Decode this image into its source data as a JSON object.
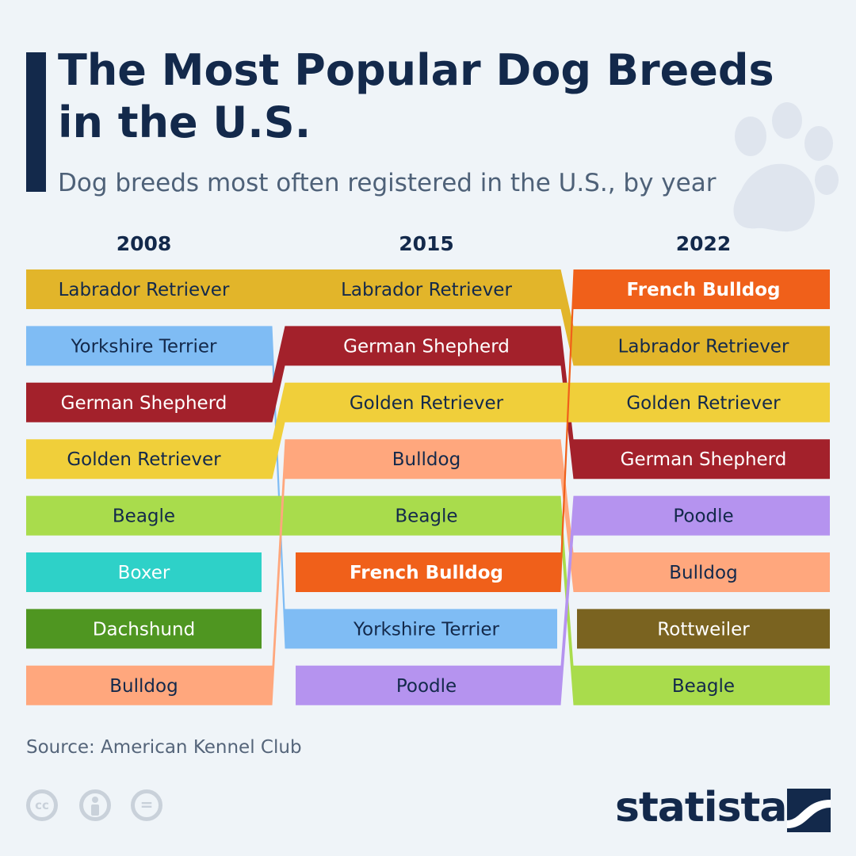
{
  "title": "The Most Popular Dog Breeds in the U.S.",
  "subtitle": "Dog breeds most often registered in the U.S., by year",
  "source": "Source: American Kennel Club",
  "brand": "statista",
  "license_icons": [
    "cc-icon",
    "by-icon",
    "nd-icon"
  ],
  "decoration_icon": "paw-icon",
  "chart_data": {
    "type": "bump",
    "years": [
      "2008",
      "2015",
      "2022"
    ],
    "rankings": {
      "2008": [
        "Labrador Retriever",
        "Yorkshire Terrier",
        "German Shepherd",
        "Golden Retriever",
        "Beagle",
        "Boxer",
        "Dachshund",
        "Bulldog"
      ],
      "2015": [
        "Labrador Retriever",
        "German Shepherd",
        "Golden Retriever",
        "Bulldog",
        "Beagle",
        "French Bulldog",
        "Yorkshire Terrier",
        "Poodle"
      ],
      "2022": [
        "French Bulldog",
        "Labrador Retriever",
        "Golden Retriever",
        "German Shepherd",
        "Poodle",
        "Bulldog",
        "Rottweiler",
        "Beagle"
      ]
    },
    "breed_colors": {
      "Labrador Retriever": "#e2b52a",
      "Yorkshire Terrier": "#7fbcf4",
      "German Shepherd": "#a3212b",
      "Golden Retriever": "#f0cf3a",
      "Beagle": "#a9dc4c",
      "Boxer": "#2ed1c8",
      "Dachshund": "#4f9621",
      "Bulldog": "#ffa77d",
      "French Bulldog": "#f0601a",
      "Poodle": "#b593ef",
      "Rottweiler": "#7a6320"
    },
    "white_label_breeds": [
      "German Shepherd",
      "Boxer",
      "Dachshund",
      "French Bulldog",
      "Rottweiler"
    ],
    "bold_label_breeds": [
      "French Bulldog"
    ]
  }
}
